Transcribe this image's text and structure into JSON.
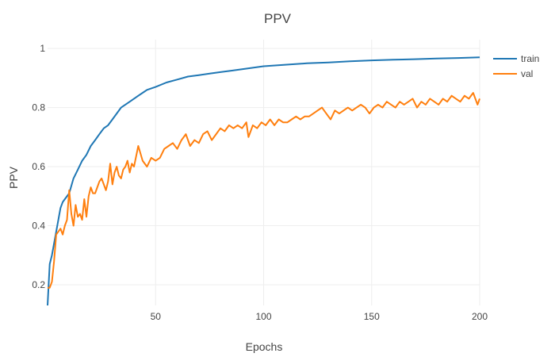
{
  "chart_data": {
    "type": "line",
    "title": "PPV",
    "xlabel": "Epochs",
    "ylabel": "PPV",
    "xlim": [
      0,
      200
    ],
    "ylim": [
      0.13,
      1.03
    ],
    "xticks": [
      50,
      100,
      150,
      200
    ],
    "xtick_labels": [
      "50",
      "100",
      "150",
      "200"
    ],
    "yticks": [
      0.2,
      0.4,
      0.6,
      0.8,
      1.0
    ],
    "ytick_labels": [
      "0.2",
      "0.4",
      "0.6",
      "0.8",
      "1"
    ],
    "grid": true,
    "legend_position": "top-right",
    "series": [
      {
        "name": "train",
        "color": "#1f77b4",
        "points": [
          [
            0,
            0.13
          ],
          [
            1,
            0.27
          ],
          [
            2,
            0.3
          ],
          [
            3,
            0.34
          ],
          [
            4,
            0.38
          ],
          [
            5,
            0.42
          ],
          [
            6,
            0.46
          ],
          [
            7,
            0.48
          ],
          [
            8,
            0.49
          ],
          [
            10,
            0.51
          ],
          [
            12,
            0.56
          ],
          [
            14,
            0.59
          ],
          [
            16,
            0.62
          ],
          [
            18,
            0.64
          ],
          [
            20,
            0.67
          ],
          [
            22,
            0.69
          ],
          [
            24,
            0.71
          ],
          [
            26,
            0.73
          ],
          [
            28,
            0.74
          ],
          [
            30,
            0.76
          ],
          [
            32,
            0.78
          ],
          [
            34,
            0.8
          ],
          [
            36,
            0.81
          ],
          [
            38,
            0.82
          ],
          [
            40,
            0.83
          ],
          [
            42,
            0.84
          ],
          [
            44,
            0.85
          ],
          [
            46,
            0.86
          ],
          [
            48,
            0.865
          ],
          [
            50,
            0.87
          ],
          [
            55,
            0.885
          ],
          [
            60,
            0.895
          ],
          [
            65,
            0.905
          ],
          [
            70,
            0.91
          ],
          [
            75,
            0.915
          ],
          [
            80,
            0.92
          ],
          [
            85,
            0.925
          ],
          [
            90,
            0.93
          ],
          [
            95,
            0.935
          ],
          [
            100,
            0.94
          ],
          [
            110,
            0.945
          ],
          [
            120,
            0.95
          ],
          [
            130,
            0.953
          ],
          [
            140,
            0.957
          ],
          [
            150,
            0.96
          ],
          [
            160,
            0.962
          ],
          [
            170,
            0.964
          ],
          [
            180,
            0.966
          ],
          [
            190,
            0.968
          ],
          [
            200,
            0.97
          ]
        ]
      },
      {
        "name": "val",
        "color": "#ff7f0e",
        "points": [
          [
            0,
            0.19
          ],
          [
            1,
            0.19
          ],
          [
            2,
            0.21
          ],
          [
            3,
            0.28
          ],
          [
            4,
            0.37
          ],
          [
            5,
            0.38
          ],
          [
            6,
            0.39
          ],
          [
            7,
            0.37
          ],
          [
            8,
            0.4
          ],
          [
            9,
            0.42
          ],
          [
            10,
            0.52
          ],
          [
            11,
            0.44
          ],
          [
            12,
            0.4
          ],
          [
            13,
            0.47
          ],
          [
            14,
            0.43
          ],
          [
            15,
            0.44
          ],
          [
            16,
            0.42
          ],
          [
            17,
            0.49
          ],
          [
            18,
            0.43
          ],
          [
            19,
            0.5
          ],
          [
            20,
            0.53
          ],
          [
            21,
            0.51
          ],
          [
            22,
            0.51
          ],
          [
            23,
            0.53
          ],
          [
            24,
            0.55
          ],
          [
            25,
            0.56
          ],
          [
            26,
            0.54
          ],
          [
            27,
            0.52
          ],
          [
            28,
            0.55
          ],
          [
            29,
            0.61
          ],
          [
            30,
            0.54
          ],
          [
            31,
            0.58
          ],
          [
            32,
            0.6
          ],
          [
            33,
            0.57
          ],
          [
            34,
            0.56
          ],
          [
            35,
            0.59
          ],
          [
            36,
            0.6
          ],
          [
            37,
            0.62
          ],
          [
            38,
            0.58
          ],
          [
            39,
            0.61
          ],
          [
            40,
            0.6
          ],
          [
            42,
            0.67
          ],
          [
            44,
            0.62
          ],
          [
            46,
            0.6
          ],
          [
            48,
            0.63
          ],
          [
            50,
            0.62
          ],
          [
            52,
            0.63
          ],
          [
            54,
            0.66
          ],
          [
            56,
            0.67
          ],
          [
            58,
            0.68
          ],
          [
            60,
            0.66
          ],
          [
            62,
            0.69
          ],
          [
            64,
            0.71
          ],
          [
            66,
            0.67
          ],
          [
            68,
            0.69
          ],
          [
            70,
            0.68
          ],
          [
            72,
            0.71
          ],
          [
            74,
            0.72
          ],
          [
            76,
            0.69
          ],
          [
            78,
            0.71
          ],
          [
            80,
            0.73
          ],
          [
            82,
            0.72
          ],
          [
            84,
            0.74
          ],
          [
            86,
            0.73
          ],
          [
            88,
            0.74
          ],
          [
            90,
            0.73
          ],
          [
            92,
            0.75
          ],
          [
            93,
            0.7
          ],
          [
            95,
            0.74
          ],
          [
            97,
            0.73
          ],
          [
            99,
            0.75
          ],
          [
            101,
            0.74
          ],
          [
            103,
            0.76
          ],
          [
            105,
            0.74
          ],
          [
            107,
            0.76
          ],
          [
            109,
            0.75
          ],
          [
            111,
            0.75
          ],
          [
            113,
            0.76
          ],
          [
            115,
            0.77
          ],
          [
            117,
            0.76
          ],
          [
            119,
            0.77
          ],
          [
            121,
            0.77
          ],
          [
            123,
            0.78
          ],
          [
            125,
            0.79
          ],
          [
            127,
            0.8
          ],
          [
            129,
            0.78
          ],
          [
            131,
            0.76
          ],
          [
            133,
            0.79
          ],
          [
            135,
            0.78
          ],
          [
            137,
            0.79
          ],
          [
            139,
            0.8
          ],
          [
            141,
            0.79
          ],
          [
            143,
            0.8
          ],
          [
            145,
            0.81
          ],
          [
            147,
            0.8
          ],
          [
            149,
            0.78
          ],
          [
            151,
            0.8
          ],
          [
            153,
            0.81
          ],
          [
            155,
            0.8
          ],
          [
            157,
            0.82
          ],
          [
            159,
            0.81
          ],
          [
            161,
            0.8
          ],
          [
            163,
            0.82
          ],
          [
            165,
            0.81
          ],
          [
            167,
            0.82
          ],
          [
            169,
            0.83
          ],
          [
            171,
            0.8
          ],
          [
            173,
            0.82
          ],
          [
            175,
            0.81
          ],
          [
            177,
            0.83
          ],
          [
            179,
            0.82
          ],
          [
            181,
            0.81
          ],
          [
            183,
            0.83
          ],
          [
            185,
            0.82
          ],
          [
            187,
            0.84
          ],
          [
            189,
            0.83
          ],
          [
            191,
            0.82
          ],
          [
            193,
            0.84
          ],
          [
            195,
            0.83
          ],
          [
            197,
            0.85
          ],
          [
            199,
            0.81
          ],
          [
            200,
            0.83
          ]
        ]
      }
    ]
  }
}
